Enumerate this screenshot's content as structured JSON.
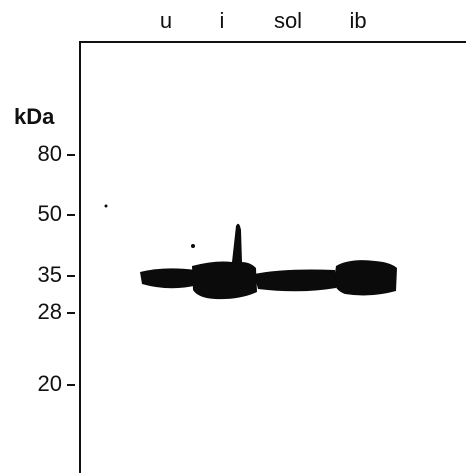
{
  "lanes": [
    "u",
    "i",
    "sol",
    "ib"
  ],
  "unit": "kDa",
  "markers": [
    "80",
    "50",
    "35",
    "28",
    "20"
  ]
}
